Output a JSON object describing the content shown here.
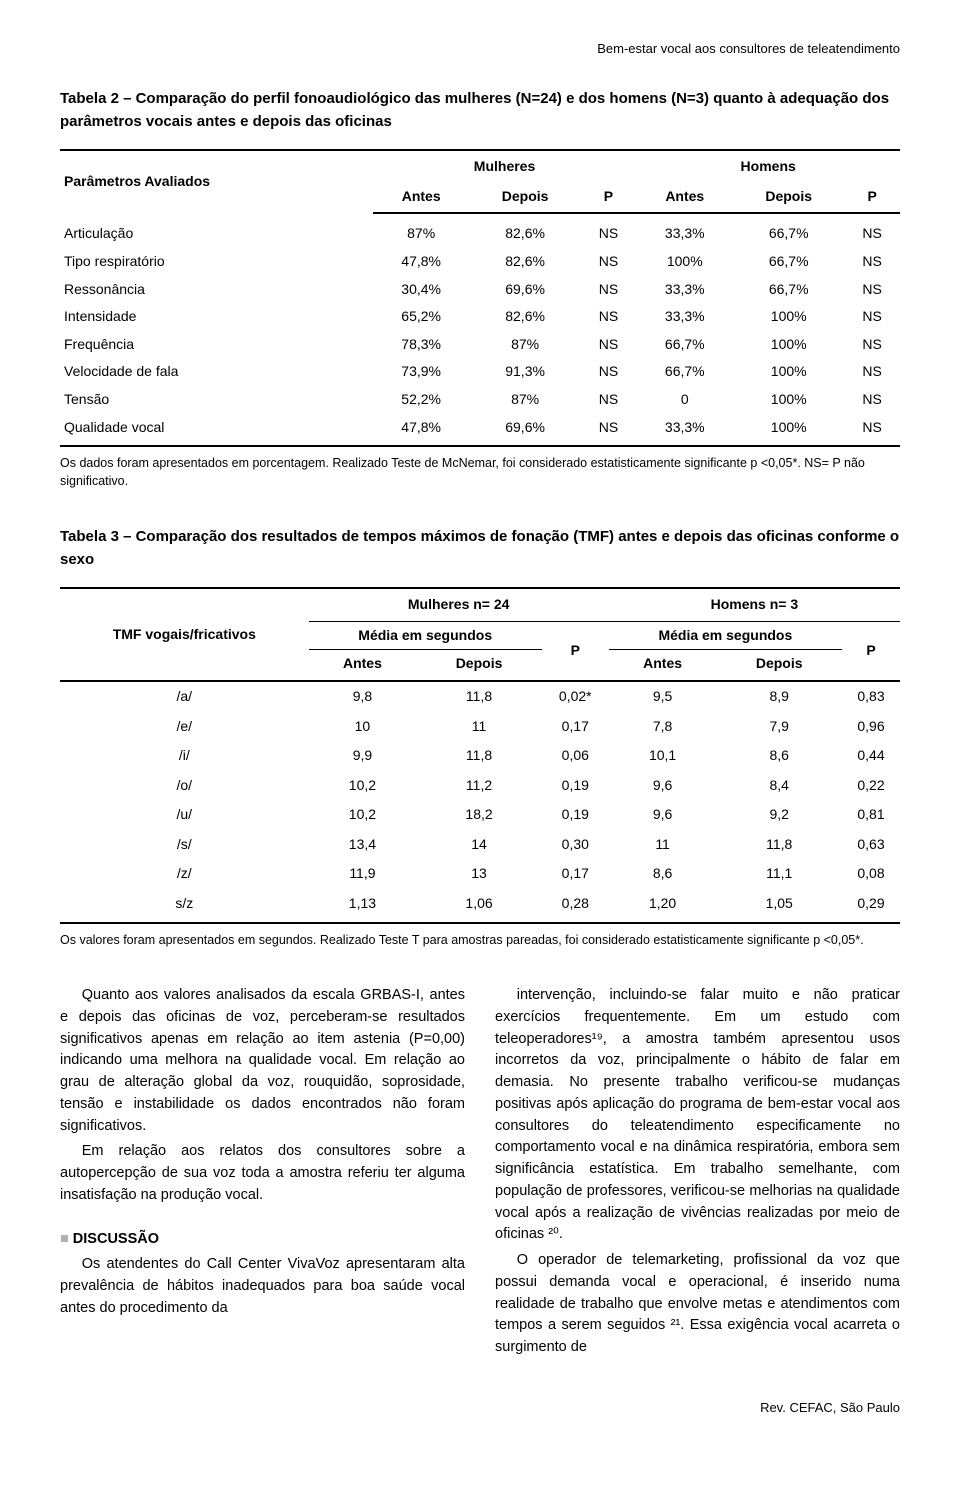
{
  "header_text": "Bem-estar vocal aos consultores de teleatendimento",
  "table2": {
    "title": "Tabela 2 – Comparação do perfil fonoaudiológico das mulheres (N=24) e dos homens (N=3) quanto à adequação dos parâmetros vocais antes e depois das oficinas",
    "param_header": "Parâmetros Avaliados",
    "group_mulheres": "Mulheres",
    "group_homens": "Homens",
    "sub_antes": "Antes",
    "sub_depois": "Depois",
    "sub_p": "P",
    "rows": [
      {
        "label": "Articulação",
        "m_antes": "87%",
        "m_depois": "82,6%",
        "m_p": "NS",
        "h_antes": "33,3%",
        "h_depois": "66,7%",
        "h_p": "NS"
      },
      {
        "label": "Tipo respiratório",
        "m_antes": "47,8%",
        "m_depois": "82,6%",
        "m_p": "NS",
        "h_antes": "100%",
        "h_depois": "66,7%",
        "h_p": "NS"
      },
      {
        "label": "Ressonância",
        "m_antes": "30,4%",
        "m_depois": "69,6%",
        "m_p": "NS",
        "h_antes": "33,3%",
        "h_depois": "66,7%",
        "h_p": "NS"
      },
      {
        "label": "Intensidade",
        "m_antes": "65,2%",
        "m_depois": "82,6%",
        "m_p": "NS",
        "h_antes": "33,3%",
        "h_depois": "100%",
        "h_p": "NS"
      },
      {
        "label": "Frequência",
        "m_antes": "78,3%",
        "m_depois": "87%",
        "m_p": "NS",
        "h_antes": "66,7%",
        "h_depois": "100%",
        "h_p": "NS"
      },
      {
        "label": "Velocidade de fala",
        "m_antes": "73,9%",
        "m_depois": "91,3%",
        "m_p": "NS",
        "h_antes": "66,7%",
        "h_depois": "100%",
        "h_p": "NS"
      },
      {
        "label": "Tensão",
        "m_antes": "52,2%",
        "m_depois": "87%",
        "m_p": "NS",
        "h_antes": "0",
        "h_depois": "100%",
        "h_p": "NS"
      },
      {
        "label": "Qualidade vocal",
        "m_antes": "47,8%",
        "m_depois": "69,6%",
        "m_p": "NS",
        "h_antes": "33,3%",
        "h_depois": "100%",
        "h_p": "NS"
      }
    ],
    "note": "Os dados foram apresentados em porcentagem. Realizado Teste de McNemar, foi considerado estatisticamente significante p <0,05*. NS= P não significativo."
  },
  "table3": {
    "title": "Tabela 3 – Comparação dos resultados de tempos máximos de fonação (TMF) antes e depois das oficinas conforme o sexo",
    "tmf_header": "TMF vogais/fricativos",
    "mulheres_n": "Mulheres n= 24",
    "homens_n": "Homens n= 3",
    "media_seg": "Média em segundos",
    "p_label": "P",
    "antes": "Antes",
    "depois": "Depois",
    "rows": [
      {
        "label": "/a/",
        "m_a": "9,8",
        "m_d": "11,8",
        "m_p": "0,02*",
        "h_a": "9,5",
        "h_d": "8,9",
        "h_p": "0,83"
      },
      {
        "label": "/e/",
        "m_a": "10",
        "m_d": "11",
        "m_p": "0,17",
        "h_a": "7,8",
        "h_d": "7,9",
        "h_p": "0,96"
      },
      {
        "label": "/i/",
        "m_a": "9,9",
        "m_d": "11,8",
        "m_p": "0,06",
        "h_a": "10,1",
        "h_d": "8,6",
        "h_p": "0,44"
      },
      {
        "label": "/o/",
        "m_a": "10,2",
        "m_d": "11,2",
        "m_p": "0,19",
        "h_a": "9,6",
        "h_d": "8,4",
        "h_p": "0,22"
      },
      {
        "label": "/u/",
        "m_a": "10,2",
        "m_d": "18,2",
        "m_p": "0,19",
        "h_a": "9,6",
        "h_d": "9,2",
        "h_p": "0,81"
      },
      {
        "label": "/s/",
        "m_a": "13,4",
        "m_d": "14",
        "m_p": "0,30",
        "h_a": "11",
        "h_d": "11,8",
        "h_p": "0,63"
      },
      {
        "label": "/z/",
        "m_a": "11,9",
        "m_d": "13",
        "m_p": "0,17",
        "h_a": "8,6",
        "h_d": "11,1",
        "h_p": "0,08"
      },
      {
        "label": "s/z",
        "m_a": "1,13",
        "m_d": "1,06",
        "m_p": "0,28",
        "h_a": "1,20",
        "h_d": "1,05",
        "h_p": "0,29"
      }
    ],
    "note": "Os valores foram apresentados em segundos. Realizado Teste T para amostras pareadas, foi considerado estatisticamente significante p <0,05*."
  },
  "body": {
    "left_p1": "Quanto aos valores analisados da escala GRBAS-I, antes e depois das oficinas de voz, perceberam-se resultados significativos apenas em relação ao item astenia (P=0,00) indicando uma melhora na qualidade vocal. Em relação ao grau de alteração global da voz, rouquidão, soprosidade, tensão e instabilidade os dados encontrados não foram significativos.",
    "left_p2": "Em relação aos relatos dos consultores sobre a autopercepção de sua voz toda a amostra referiu ter alguma insatisfação na produção vocal.",
    "discussion_heading": "DISCUSSÃO",
    "left_p3": "Os atendentes do Call Center VivaVoz apresentaram alta prevalência de hábitos inadequados para boa saúde vocal antes do procedimento da",
    "right_p1": "intervenção, incluindo-se falar muito e não praticar exercícios frequentemente. Em um estudo com teleoperadores¹⁹, a amostra também apresentou usos incorretos da voz, principalmente o hábito de falar em demasia. No presente trabalho verificou-se mudanças positivas após aplicação do programa de bem-estar vocal aos consultores do teleatendimento especificamente no comportamento vocal e na dinâmica respiratória, embora sem significância estatística. Em trabalho semelhante, com população de professores, verificou-se melhorias na qualidade vocal após a realização de vivências realizadas por meio de oficinas ²⁰.",
    "right_p2": "O operador de telemarketing, profissional da voz que possui demanda vocal e operacional, é inserido numa realidade de trabalho que envolve metas e atendimentos com tempos a serem seguidos ²¹. Essa exigência vocal acarreta o surgimento de"
  },
  "footer": "Rev. CEFAC, São Paulo"
}
